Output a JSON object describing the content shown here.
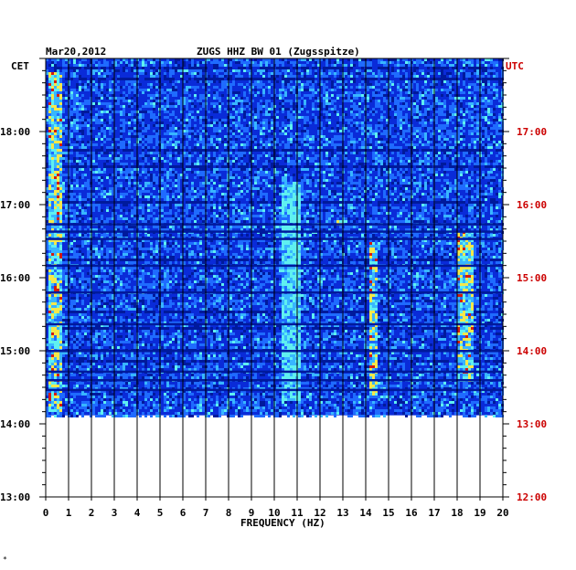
{
  "header": {
    "date": "Mar20,2012",
    "station": "ZUGS HHZ BW 01 (Zugsspitze)",
    "left_zone": "CET",
    "right_zone": "UTC"
  },
  "footer_mark": "*",
  "chart_data": {
    "type": "heatmap",
    "title": "ZUGS HHZ BW 01 (Zugsspitze)",
    "date": "Mar20,2012",
    "xlabel": "FREQUENCY (HZ)",
    "xlim": [
      0,
      20
    ],
    "x_ticks": [
      "0",
      "1",
      "2",
      "3",
      "4",
      "5",
      "6",
      "7",
      "8",
      "9",
      "10",
      "11",
      "12",
      "13",
      "14",
      "15",
      "16",
      "17",
      "18",
      "19",
      "20"
    ],
    "y_left_label": "CET",
    "y_right_label": "UTC",
    "y_left_ticks": [
      "18:00",
      "17:00",
      "16:00",
      "15:00",
      "14:00",
      "13:00"
    ],
    "y_right_ticks": [
      "17:00",
      "16:00",
      "15:00",
      "14:00",
      "13:00",
      "12:00"
    ],
    "time_range_cet": [
      "13:00",
      "18:50"
    ],
    "data_end_cet": "14:07",
    "grid": true,
    "colors": {
      "background_blue": "#0a2bd8",
      "deep_blue": "#001a9c",
      "mid_blue": "#1f6bff",
      "light_blue": "#38b6ff",
      "cyan": "#5ff0f0",
      "yellow": "#f5e84a",
      "orange": "#f08a20",
      "red": "#d41a10",
      "left_axis": "#000000",
      "right_axis": "#cc0000"
    },
    "notable_features": [
      {
        "freq_hz": [
          0.1,
          0.6
        ],
        "time_cet": [
          "14:10",
          "18:50"
        ],
        "intensity": "high (yellow-red)"
      },
      {
        "freq_hz": [
          10.4,
          11.0
        ],
        "time_cet": [
          "14:20",
          "17:20"
        ],
        "intensity": "medium (cyan)"
      },
      {
        "freq_hz": [
          12.7,
          12.9
        ],
        "time_cet": [
          "16:44",
          "16:48"
        ],
        "intensity": "high (orange)"
      },
      {
        "freq_hz": [
          14.2,
          14.4
        ],
        "time_cet": [
          "14:25",
          "16:30"
        ],
        "intensity": "medium-high"
      },
      {
        "freq_hz": [
          18.0,
          18.6
        ],
        "time_cet": [
          "14:35",
          "16:40"
        ],
        "intensity": "medium-high (yellow)"
      }
    ]
  }
}
